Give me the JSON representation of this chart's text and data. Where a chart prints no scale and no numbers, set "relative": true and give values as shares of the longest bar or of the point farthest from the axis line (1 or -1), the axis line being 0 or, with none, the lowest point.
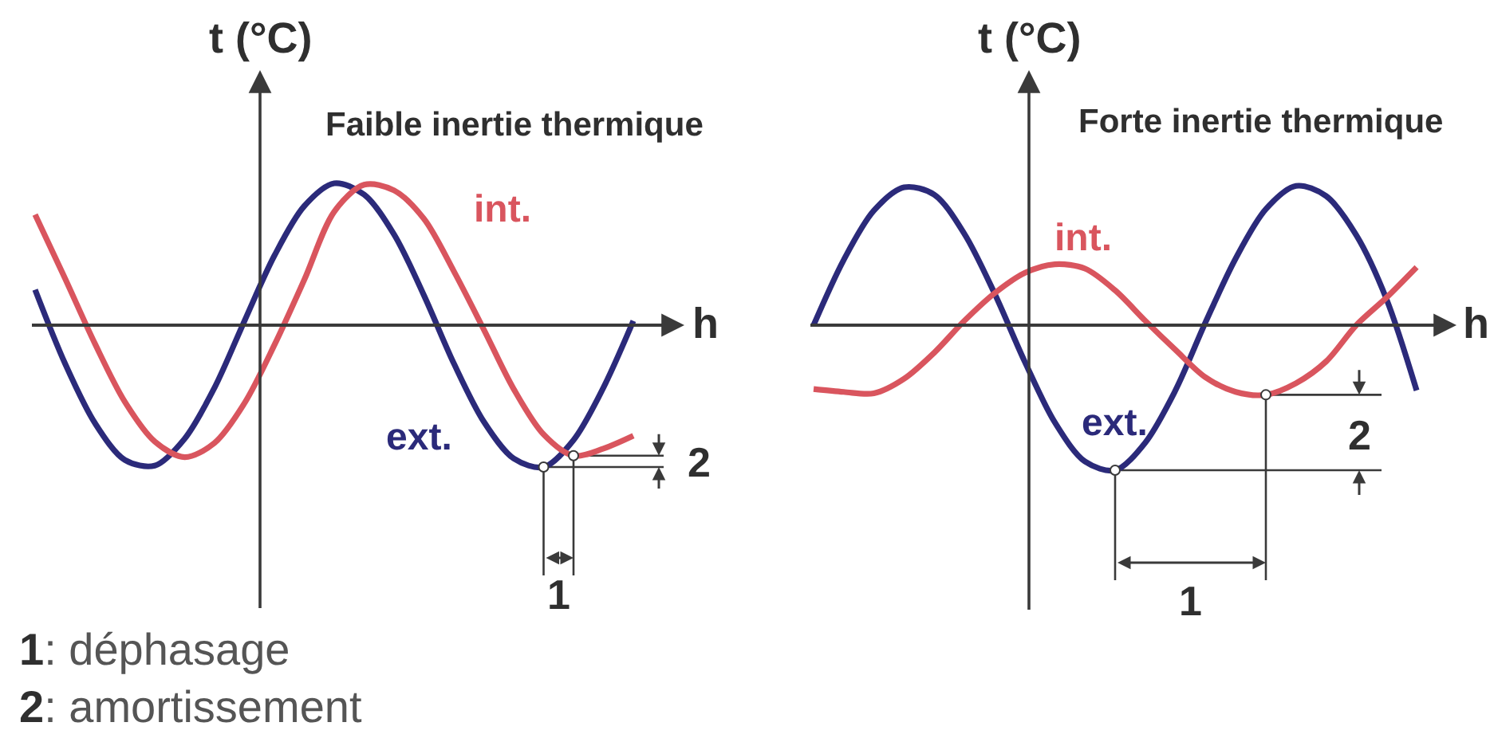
{
  "chart_data": [
    {
      "type": "line",
      "relative": true,
      "title": "Faible inertie thermique",
      "xlabel": "h",
      "ylabel": "t (°C)",
      "categories": [
        null,
        null,
        null,
        null,
        null,
        null,
        null,
        null,
        null,
        null,
        null,
        null,
        null,
        null,
        null,
        null,
        null,
        null,
        null,
        null,
        null
      ],
      "series": [
        {
          "name": "ext.",
          "color": "#2b2a7a",
          "values": [
            0.25,
            -0.27,
            -0.69,
            -0.95,
            -0.99,
            -0.8,
            -0.44,
            0.03,
            0.49,
            0.84,
            1.0,
            0.92,
            0.64,
            0.21,
            -0.27,
            -0.68,
            -0.94,
            -1.0,
            -0.81,
            -0.44,
            0.03
          ]
        },
        {
          "name": "int.",
          "color": "#d9555e",
          "values": [
            0.78,
            0.33,
            -0.13,
            -0.54,
            -0.82,
            -0.93,
            -0.83,
            -0.55,
            -0.14,
            0.32,
            0.8,
            0.99,
            0.95,
            0.75,
            0.38,
            -0.03,
            -0.45,
            -0.77,
            -0.92,
            -0.87,
            -0.78
          ]
        }
      ],
      "annotations": [
        "1",
        "2",
        "1: déphasage",
        "2: amortissement"
      ]
    },
    {
      "type": "line",
      "relative": true,
      "title": "Forte inertie thermique",
      "xlabel": "h",
      "ylabel": "t (°C)",
      "categories": [
        null,
        null,
        null,
        null,
        null,
        null,
        null,
        null,
        null,
        null,
        null,
        null,
        null,
        null,
        null,
        null,
        null,
        null,
        null,
        null,
        null
      ],
      "series": [
        {
          "name": "ext.",
          "color": "#2b2a7a",
          "values": [
            0.0,
            0.45,
            0.79,
            0.95,
            0.9,
            0.63,
            0.22,
            -0.25,
            -0.67,
            -0.94,
            -1.0,
            -0.81,
            -0.45,
            0.02,
            0.46,
            0.8,
            0.96,
            0.89,
            0.62,
            0.18,
            -0.45
          ]
        },
        {
          "name": "int.",
          "color": "#d9555e",
          "values": [
            -0.44,
            -0.46,
            -0.47,
            -0.37,
            -0.19,
            0.03,
            0.22,
            0.36,
            0.42,
            0.39,
            0.24,
            0.03,
            -0.17,
            -0.36,
            -0.46,
            -0.48,
            -0.4,
            -0.25,
            0.0,
            0.19,
            0.4
          ]
        }
      ],
      "annotations": [
        "1",
        "2"
      ]
    }
  ]
}
